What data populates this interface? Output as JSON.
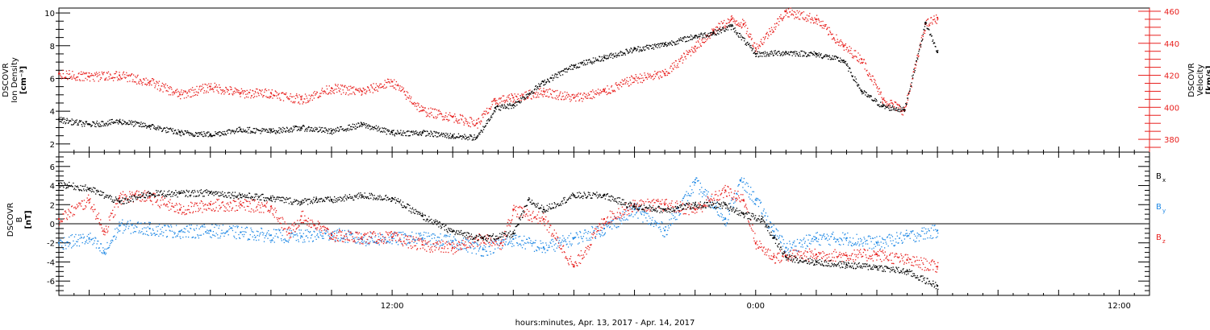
{
  "colors": {
    "black": "#000000",
    "red": "#e8201e",
    "blue": "#1e88e5",
    "background": "#ffffff"
  },
  "x_axis": {
    "title": "hours:minutes, Apr. 13, 2017 - Apr. 14, 2017",
    "tick_labels": [
      {
        "hour": 12,
        "label": "12:00"
      },
      {
        "hour": 24,
        "label": "0:00"
      },
      {
        "hour": 36,
        "label": "12:00"
      }
    ],
    "range_hours": [
      1,
      37
    ]
  },
  "chart_data": [
    {
      "type": "scatter",
      "title": "",
      "xlabel": "",
      "x_range_hours": [
        1,
        37
      ],
      "left_axis": {
        "label_lines": [
          "DSCOVR",
          "Ion Density",
          "[cm⁻³]"
        ],
        "ylim": [
          1.5,
          10.3
        ],
        "tick_labels": [
          "2",
          "4",
          "6",
          "8",
          "10"
        ],
        "color": "black"
      },
      "right_axis": {
        "label_lines": [
          "DSCOVR",
          "Velocity",
          "[km/s]"
        ],
        "ylim": [
          372,
          462
        ],
        "tick_labels": [
          "380",
          "400",
          "420",
          "440",
          "460"
        ],
        "color": "red"
      },
      "series": [
        {
          "axis": "left",
          "color": "black",
          "x": [
            1.0,
            2.0,
            3.0,
            4.0,
            5.0,
            6.0,
            7.0,
            8.0,
            9.0,
            10.0,
            11.0,
            12.0,
            13.0,
            14.0,
            14.8,
            15.4,
            16.0,
            17.0,
            18.0,
            19.0,
            20.0,
            21.0,
            22.0,
            22.6,
            23.2,
            24.0,
            25.0,
            26.0,
            26.9,
            27.5,
            28.2,
            28.9,
            29.6,
            30.0
          ],
          "values": [
            3.5,
            3.2,
            3.4,
            3.1,
            2.7,
            2.6,
            2.9,
            2.8,
            3.0,
            2.8,
            3.2,
            2.7,
            2.7,
            2.5,
            2.4,
            4.2,
            4.4,
            5.8,
            6.8,
            7.3,
            7.8,
            8.1,
            8.6,
            8.8,
            9.2,
            7.5,
            7.6,
            7.5,
            7.1,
            5.2,
            4.3,
            4.1,
            9.4,
            7.6
          ]
        },
        {
          "axis": "right",
          "color": "red",
          "x": [
            1.0,
            2.0,
            3.0,
            4.0,
            5.0,
            6.0,
            7.0,
            8.0,
            9.0,
            10.0,
            11.0,
            12.0,
            13.0,
            14.0,
            14.8,
            15.4,
            16.0,
            17.0,
            18.0,
            19.0,
            20.0,
            21.0,
            22.0,
            22.6,
            23.2,
            23.6,
            24.0,
            25.0,
            26.0,
            26.9,
            27.5,
            28.2,
            28.9,
            29.6,
            30.0
          ],
          "values": [
            421,
            419,
            420,
            416,
            408,
            413,
            409,
            409,
            405,
            412,
            410,
            416,
            398,
            394,
            390,
            404,
            406,
            410,
            406,
            410,
            418,
            421,
            438,
            448,
            455,
            452,
            437,
            460,
            455,
            438,
            430,
            405,
            398,
            452,
            456
          ]
        }
      ]
    },
    {
      "type": "scatter",
      "title": "",
      "xlabel": "hours:minutes, Apr. 13, 2017 - Apr. 14, 2017",
      "x_range_hours": [
        1,
        37
      ],
      "left_axis": {
        "label_lines": [
          "DSCOVR",
          "B",
          "[nT]"
        ],
        "ylim": [
          -7.5,
          7.5
        ],
        "tick_labels": [
          "-6",
          "-4",
          "-2",
          "0",
          "2",
          "4",
          "6"
        ],
        "color": "black"
      },
      "zero_line": true,
      "legend": [
        {
          "name": "B",
          "sub": "x",
          "color": "black"
        },
        {
          "name": "B",
          "sub": "y",
          "color": "blue"
        },
        {
          "name": "B",
          "sub": "z",
          "color": "red"
        }
      ],
      "series": [
        {
          "name": "Bx",
          "color": "black",
          "x": [
            1.0,
            2.0,
            3.0,
            4.0,
            5.0,
            6.0,
            7.0,
            8.0,
            9.0,
            9.5,
            10.0,
            11.0,
            12.0,
            13.0,
            14.0,
            15.0,
            16.0,
            16.5,
            17.0,
            18.0,
            19.0,
            20.0,
            21.0,
            22.0,
            23.0,
            23.6,
            24.2,
            24.6,
            25.0,
            26.0,
            27.0,
            28.0,
            29.0,
            30.0
          ],
          "values": [
            4.2,
            3.7,
            2.3,
            3.2,
            3.2,
            3.3,
            3.0,
            2.7,
            2.3,
            2.6,
            2.5,
            3.0,
            2.7,
            0.8,
            -0.8,
            -1.5,
            -1.0,
            2.5,
            1.5,
            3.0,
            3.0,
            1.8,
            1.5,
            2.0,
            2.0,
            1.0,
            0.5,
            -1.5,
            -3.5,
            -4.0,
            -4.3,
            -4.5,
            -5.0,
            -6.5
          ]
        },
        {
          "name": "By",
          "color": "blue",
          "x": [
            1.0,
            2.0,
            2.5,
            3.0,
            4.0,
            5.0,
            6.0,
            7.0,
            8.0,
            9.0,
            10.0,
            11.0,
            12.0,
            13.0,
            14.0,
            15.0,
            16.0,
            17.0,
            18.0,
            19.0,
            20.0,
            21.0,
            22.0,
            23.0,
            23.5,
            24.0,
            24.6,
            25.0,
            26.0,
            27.0,
            28.0,
            29.0,
            30.0
          ],
          "values": [
            -2.0,
            -1.5,
            -3.0,
            -0.2,
            -0.5,
            -0.8,
            -0.7,
            -0.9,
            -1.2,
            -1.3,
            -1.0,
            -1.6,
            -1.5,
            -1.5,
            -1.8,
            -2.7,
            -1.6,
            -2.5,
            -1.5,
            -0.5,
            1.5,
            -0.7,
            4.3,
            0.5,
            4.5,
            2.5,
            -0.8,
            -2.5,
            -1.5,
            -1.5,
            -2.0,
            -1.3,
            -0.7
          ]
        },
        {
          "name": "Bz",
          "color": "red",
          "x": [
            1.0,
            2.0,
            2.5,
            3.0,
            3.5,
            4.0,
            5.0,
            6.0,
            7.0,
            8.0,
            8.6,
            9.0,
            10.0,
            11.0,
            12.0,
            13.0,
            14.0,
            15.0,
            15.6,
            16.0,
            17.0,
            18.0,
            19.0,
            20.0,
            21.0,
            22.0,
            23.0,
            23.6,
            24.0,
            24.6,
            25.0,
            26.0,
            27.0,
            28.0,
            29.0,
            30.0
          ],
          "values": [
            0.5,
            2.5,
            -0.8,
            2.7,
            3.0,
            2.8,
            1.5,
            2.0,
            2.0,
            1.8,
            -1.0,
            0.8,
            -1.2,
            -1.4,
            -1.4,
            -2.2,
            -2.5,
            -1.5,
            -2.0,
            1.5,
            0.5,
            -4.5,
            0.5,
            2.0,
            2.0,
            1.5,
            3.5,
            2.5,
            -2.0,
            -3.5,
            -3.3,
            -3.2,
            -3.3,
            -3.2,
            -3.8,
            -4.5
          ]
        }
      ]
    }
  ]
}
